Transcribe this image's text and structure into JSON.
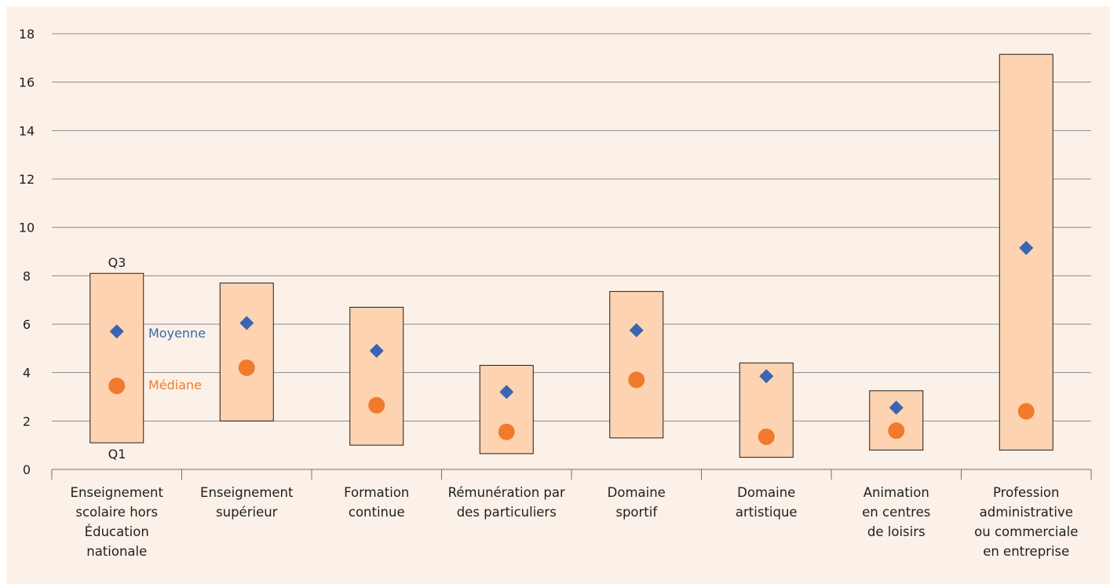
{
  "chart_data": {
    "type": "box",
    "ylim": [
      0,
      18
    ],
    "yticks": [
      "0",
      "2",
      "4",
      "6",
      "8",
      "10",
      "12",
      "14",
      "16",
      "18"
    ],
    "grid": true,
    "categories": [
      [
        "Enseignement",
        "scolaire hors",
        "Éducation",
        "nationale"
      ],
      [
        "Enseignement",
        "supérieur"
      ],
      [
        "Formation",
        "continue"
      ],
      [
        "Rémunération par",
        "des particuliers"
      ],
      [
        "Domaine",
        "sportif"
      ],
      [
        "Domaine",
        "artistique"
      ],
      [
        "Animation",
        "en centres",
        "de loisirs"
      ],
      [
        "Profession",
        "administrative",
        "ou commerciale",
        "en entreprise"
      ]
    ],
    "q1": [
      1.1,
      2.0,
      1.0,
      0.65,
      1.3,
      0.5,
      0.8,
      0.8
    ],
    "q3": [
      8.1,
      7.7,
      6.7,
      4.3,
      7.35,
      4.4,
      3.25,
      17.15
    ],
    "mean": [
      5.7,
      6.05,
      4.9,
      3.2,
      5.75,
      3.85,
      2.55,
      9.15
    ],
    "median": [
      3.45,
      4.2,
      2.65,
      1.55,
      3.7,
      1.35,
      1.6,
      2.4
    ],
    "annotations": {
      "q3": "Q3",
      "q1": "Q1",
      "mean": "Moyenne",
      "median": "Médiane"
    },
    "colors": {
      "box_fill": "#fdd3b1",
      "box_stroke": "#1e1e1e",
      "mean": "#3a65b0",
      "median": "#f27a2c",
      "grid": "#8a8a8a",
      "background": "#fcf1e8"
    }
  }
}
